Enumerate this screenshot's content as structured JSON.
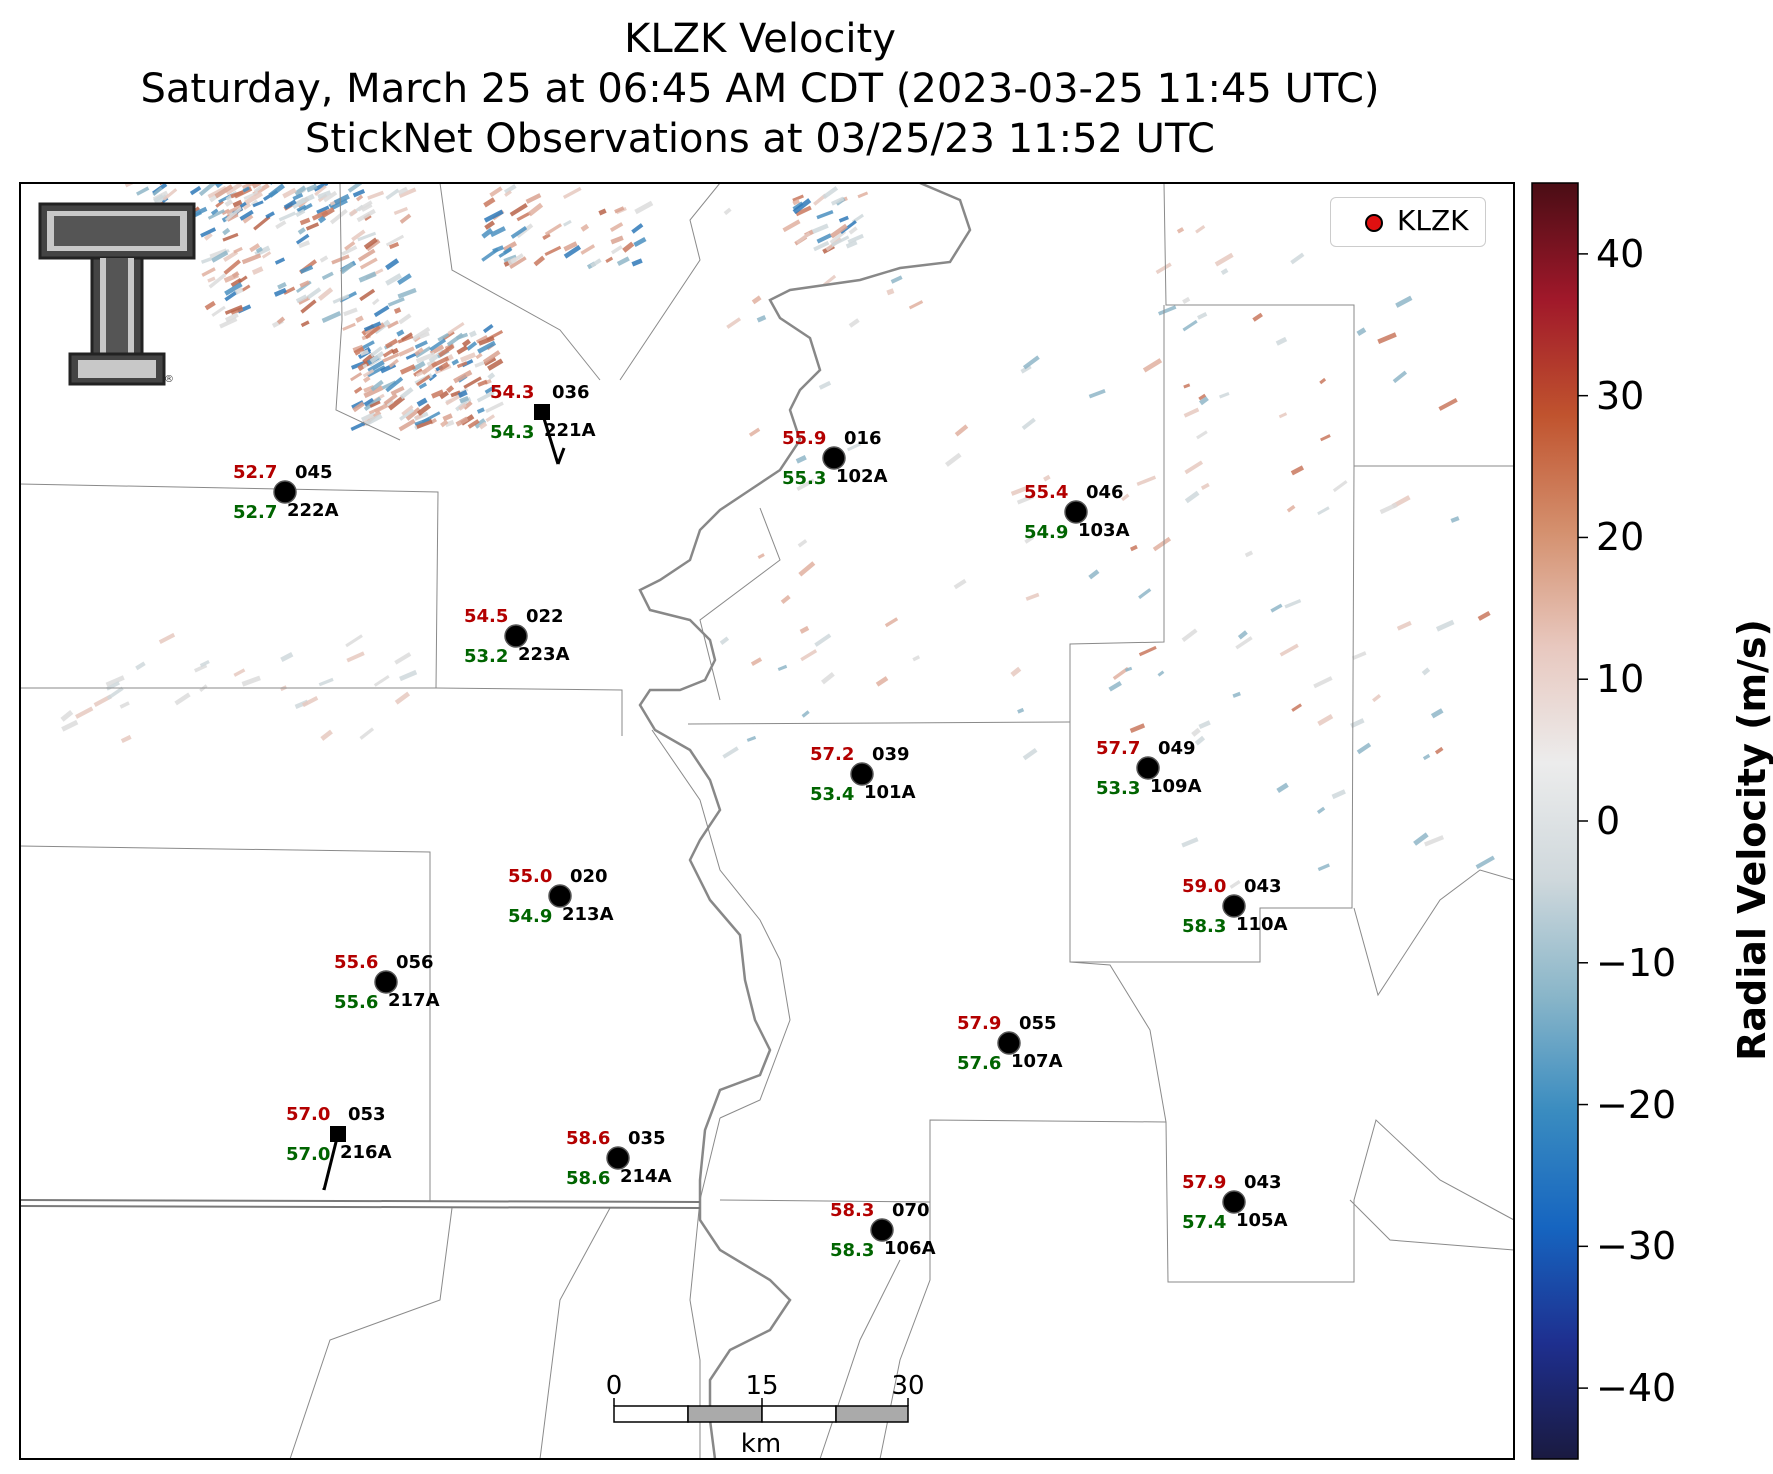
{
  "title": {
    "line1": "KLZK Velocity",
    "line2": "Saturday, March 25 at 06:45 AM CDT (2023-03-25 11:45 UTC)",
    "line3": "StickNet Observations at 03/25/23 11:52 UTC"
  },
  "legend": {
    "label": "KLZK",
    "marker_color": "#e01010"
  },
  "colorbar": {
    "label": "Radial Velocity (m/s)",
    "min": -45,
    "max": 45,
    "ticks": [
      "40",
      "30",
      "20",
      "10",
      "0",
      "−10",
      "−20",
      "−30",
      "−40"
    ],
    "tick_values": [
      40,
      30,
      20,
      10,
      0,
      -10,
      -20,
      -30,
      -40
    ],
    "colors": [
      "#1a1a40",
      "#1e2f8f",
      "#1665c0",
      "#3a8cc0",
      "#8ab6c9",
      "#cfd8dc",
      "#ececec",
      "#e8c8bf",
      "#d4906e",
      "#c0532e",
      "#a0182a",
      "#4a0d15"
    ]
  },
  "scalebar": {
    "ticks": [
      "0",
      "15",
      "30"
    ],
    "unit": "km"
  },
  "logo": {
    "name": "texas-tech-double-t-logo"
  },
  "stations": [
    {
      "id": "221A",
      "temp": "54.3",
      "dew": "54.3",
      "dir": "036",
      "marker": "square"
    },
    {
      "id": "222A",
      "temp": "52.7",
      "dew": "52.7",
      "dir": "045",
      "marker": "circle"
    },
    {
      "id": "102A",
      "temp": "55.9",
      "dew": "55.3",
      "dir": "016",
      "marker": "circle"
    },
    {
      "id": "103A",
      "temp": "55.4",
      "dew": "54.9",
      "dir": "046",
      "marker": "circle"
    },
    {
      "id": "223A",
      "temp": "54.5",
      "dew": "53.2",
      "dir": "022",
      "marker": "circle"
    },
    {
      "id": "101A",
      "temp": "57.2",
      "dew": "53.4",
      "dir": "039",
      "marker": "circle"
    },
    {
      "id": "109A",
      "temp": "57.7",
      "dew": "53.3",
      "dir": "049",
      "marker": "circle"
    },
    {
      "id": "213A",
      "temp": "55.0",
      "dew": "54.9",
      "dir": "020",
      "marker": "circle"
    },
    {
      "id": "110A",
      "temp": "59.0",
      "dew": "58.3",
      "dir": "043",
      "marker": "circle"
    },
    {
      "id": "217A",
      "temp": "55.6",
      "dew": "55.6",
      "dir": "056",
      "marker": "circle"
    },
    {
      "id": "107A",
      "temp": "57.9",
      "dew": "57.6",
      "dir": "055",
      "marker": "circle"
    },
    {
      "id": "216A",
      "temp": "57.0",
      "dew": "57.0",
      "dir": "053",
      "marker": "square"
    },
    {
      "id": "214A",
      "temp": "58.6",
      "dew": "58.6",
      "dir": "035",
      "marker": "circle"
    },
    {
      "id": "105A",
      "temp": "57.9",
      "dew": "57.4",
      "dir": "043",
      "marker": "circle"
    },
    {
      "id": "106A",
      "temp": "58.3",
      "dew": "58.3",
      "dir": "070",
      "marker": "circle"
    }
  ]
}
